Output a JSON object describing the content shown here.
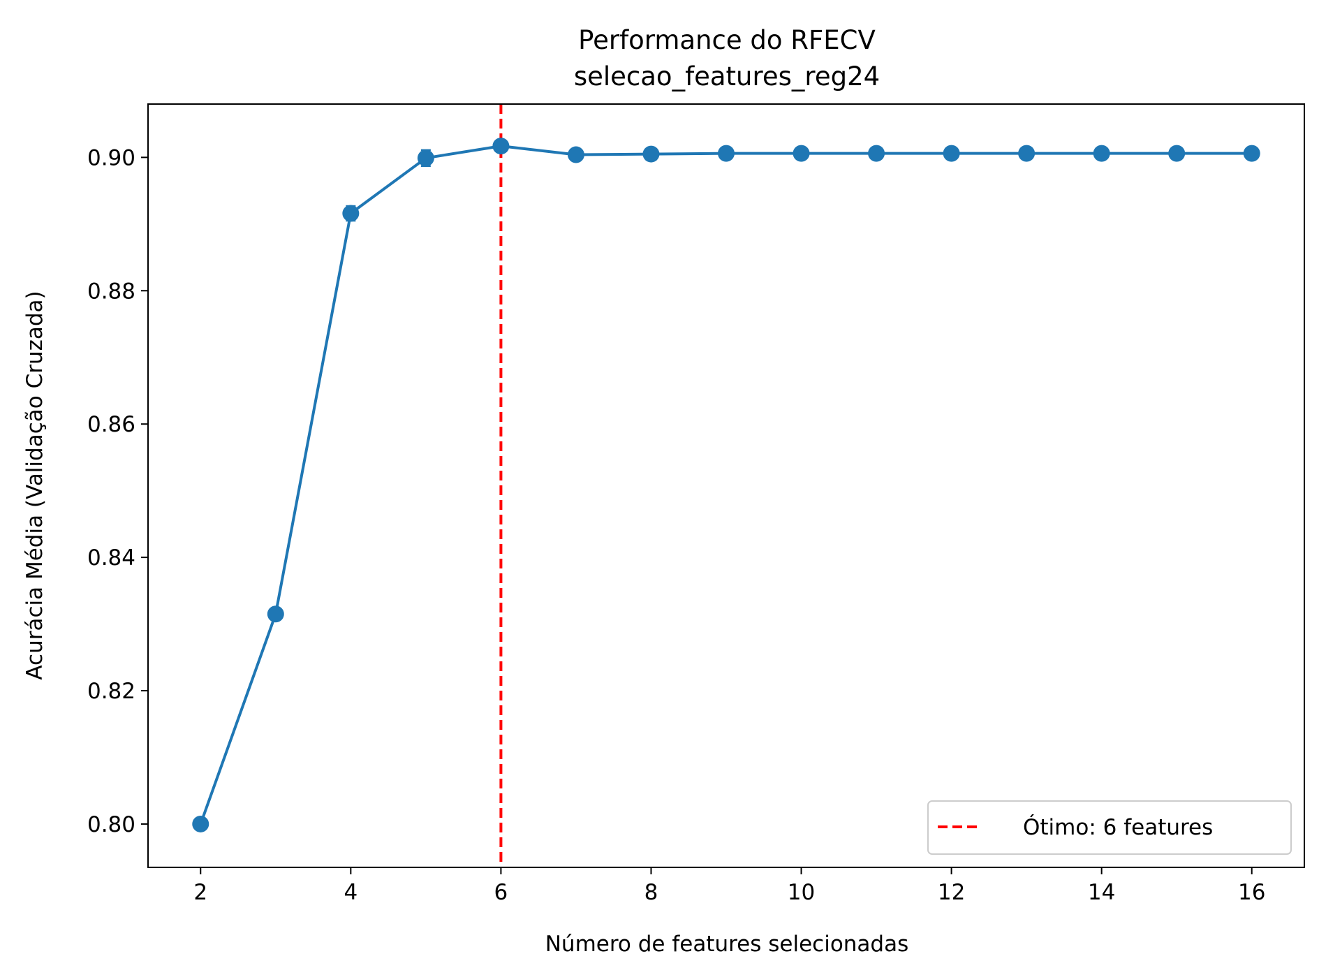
{
  "chart_data": {
    "type": "line",
    "title": "Performance do RFECV",
    "subtitle": "selecao_features_reg24",
    "xlabel": "Número de features selecionadas",
    "ylabel": "Acurácia Média (Validação Cruzada)",
    "xlim": [
      1.3,
      16.7
    ],
    "ylim": [
      0.7935,
      0.908
    ],
    "xticks": [
      2,
      4,
      6,
      8,
      10,
      12,
      14,
      16
    ],
    "yticks": [
      0.8,
      0.82,
      0.84,
      0.86,
      0.88,
      0.9
    ],
    "xtick_labels": [
      "2",
      "4",
      "6",
      "8",
      "10",
      "12",
      "14",
      "16"
    ],
    "ytick_labels": [
      "0.80",
      "0.82",
      "0.84",
      "0.86",
      "0.88",
      "0.90"
    ],
    "grid": false,
    "series": [
      {
        "color": "#1f77b4",
        "x": [
          2,
          3,
          4,
          5,
          6,
          7,
          8,
          9,
          10,
          11,
          12,
          13,
          14,
          15,
          16
        ],
        "y": [
          0.8,
          0.8315,
          0.8916,
          0.8999,
          0.9017,
          0.9004,
          0.9005,
          0.9006,
          0.9006,
          0.9006,
          0.9006,
          0.9006,
          0.9006,
          0.9006,
          0.9006
        ],
        "error": [
          0.0002,
          0.0002,
          0.0011,
          0.0012,
          0.0007,
          0.0002,
          0.0002,
          0.0002,
          0.0002,
          0.0002,
          0.0002,
          0.0002,
          0.0002,
          0.0002,
          0.0002
        ]
      }
    ],
    "reference_line": {
      "orientation": "vertical",
      "x": 6,
      "color": "#ff0000",
      "style": "dashed",
      "label": "Ótimo: 6 features"
    },
    "legend": {
      "position": "lower-right",
      "entries": [
        "Ótimo: 6 features"
      ]
    }
  }
}
